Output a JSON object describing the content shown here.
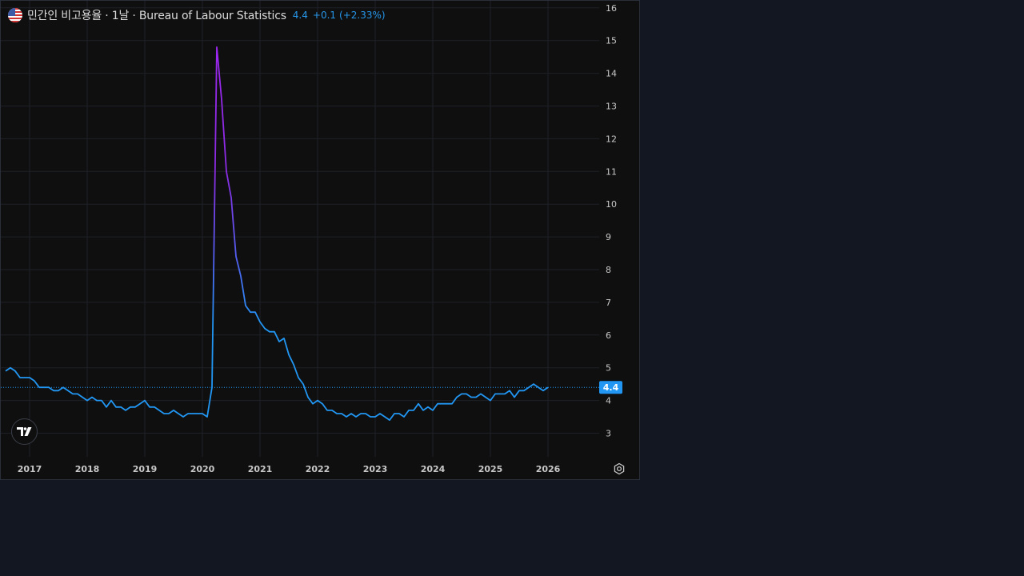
{
  "header": {
    "title": "민간인 비고용율 · 1날 · Bureau of Labour Statistics",
    "last_value": "4.4",
    "change": "+0.1",
    "change_pct": "(+2.33%)"
  },
  "price_label": "4.4",
  "icons": [
    "us-flag-icon",
    "tradingview-logo-icon",
    "settings-gear-icon"
  ],
  "colors": {
    "line_low": "#2196f3",
    "line_high": "#9c27f0",
    "background": "#0f0f0f",
    "page_background": "#131722"
  },
  "chart_data": {
    "type": "line",
    "x_ticks": [
      "2017",
      "2018",
      "2019",
      "2020",
      "2021",
      "2022",
      "2023",
      "2024",
      "2025",
      "2026"
    ],
    "y_ticks": [
      "3",
      "4",
      "5",
      "6",
      "7",
      "8",
      "9",
      "10",
      "11",
      "12",
      "13",
      "14",
      "15",
      "16"
    ],
    "ylim": [
      2.5,
      16.2
    ],
    "xlim": [
      "2016-08",
      "2026-12"
    ],
    "grid": true,
    "last_value": 4.4,
    "series": [
      {
        "x": [
          "2016-08",
          "2016-09",
          "2016-10",
          "2016-11",
          "2016-12",
          "2017-01",
          "2017-02",
          "2017-03",
          "2017-04",
          "2017-05",
          "2017-06",
          "2017-07",
          "2017-08",
          "2017-09",
          "2017-10",
          "2017-11",
          "2017-12",
          "2018-01",
          "2018-02",
          "2018-03",
          "2018-04",
          "2018-05",
          "2018-06",
          "2018-07",
          "2018-08",
          "2018-09",
          "2018-10",
          "2018-11",
          "2018-12",
          "2019-01",
          "2019-02",
          "2019-03",
          "2019-04",
          "2019-05",
          "2019-06",
          "2019-07",
          "2019-08",
          "2019-09",
          "2019-10",
          "2019-11",
          "2019-12",
          "2020-01",
          "2020-02",
          "2020-03",
          "2020-04",
          "2020-05",
          "2020-06",
          "2020-07",
          "2020-08",
          "2020-09",
          "2020-10",
          "2020-11",
          "2020-12",
          "2021-01",
          "2021-02",
          "2021-03",
          "2021-04",
          "2021-05",
          "2021-06",
          "2021-07",
          "2021-08",
          "2021-09",
          "2021-10",
          "2021-11",
          "2021-12",
          "2022-01",
          "2022-02",
          "2022-03",
          "2022-04",
          "2022-05",
          "2022-06",
          "2022-07",
          "2022-08",
          "2022-09",
          "2022-10",
          "2022-11",
          "2022-12",
          "2023-01",
          "2023-02",
          "2023-03",
          "2023-04",
          "2023-05",
          "2023-06",
          "2023-07",
          "2023-08",
          "2023-09",
          "2023-10",
          "2023-11",
          "2023-12",
          "2024-01",
          "2024-02",
          "2024-03",
          "2024-04",
          "2024-05",
          "2024-06",
          "2024-07",
          "2024-08",
          "2024-09",
          "2024-10",
          "2024-11",
          "2024-12",
          "2025-01",
          "2025-02",
          "2025-03",
          "2025-04",
          "2025-05",
          "2025-06",
          "2025-07",
          "2025-08",
          "2025-09",
          "2025-10",
          "2025-11",
          "2025-12",
          "2026-01"
        ],
        "values": [
          4.9,
          5.0,
          4.9,
          4.7,
          4.7,
          4.7,
          4.6,
          4.4,
          4.4,
          4.4,
          4.3,
          4.3,
          4.4,
          4.3,
          4.2,
          4.2,
          4.1,
          4.0,
          4.1,
          4.0,
          4.0,
          3.8,
          4.0,
          3.8,
          3.8,
          3.7,
          3.8,
          3.8,
          3.9,
          4.0,
          3.8,
          3.8,
          3.7,
          3.6,
          3.6,
          3.7,
          3.6,
          3.5,
          3.6,
          3.6,
          3.6,
          3.6,
          3.5,
          4.4,
          14.8,
          13.2,
          11.0,
          10.2,
          8.4,
          7.8,
          6.9,
          6.7,
          6.7,
          6.4,
          6.2,
          6.1,
          6.1,
          5.8,
          5.9,
          5.4,
          5.1,
          4.7,
          4.5,
          4.1,
          3.9,
          4.0,
          3.9,
          3.7,
          3.7,
          3.6,
          3.6,
          3.5,
          3.6,
          3.5,
          3.6,
          3.6,
          3.5,
          3.5,
          3.6,
          3.5,
          3.4,
          3.6,
          3.6,
          3.5,
          3.7,
          3.7,
          3.9,
          3.7,
          3.8,
          3.7,
          3.9,
          3.9,
          3.9,
          3.9,
          4.1,
          4.2,
          4.2,
          4.1,
          4.1,
          4.2,
          4.1,
          4.0,
          4.2,
          4.2,
          4.2,
          4.3,
          4.1,
          4.3,
          4.3,
          4.4,
          4.5,
          4.4,
          4.3,
          4.4
        ]
      }
    ]
  }
}
